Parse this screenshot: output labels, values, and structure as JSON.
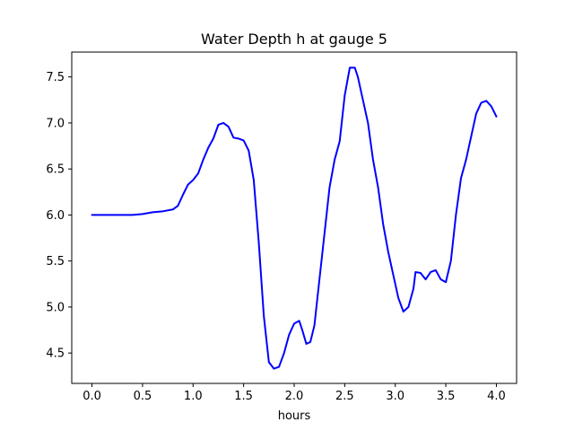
{
  "chart_data": {
    "type": "line",
    "title": "Water Depth h at gauge 5",
    "xlabel": "hours",
    "ylabel": "",
    "xlim": [
      -0.2,
      4.2
    ],
    "ylim": [
      4.17,
      7.77
    ],
    "xticks": [
      0.0,
      0.5,
      1.0,
      1.5,
      2.0,
      2.5,
      3.0,
      3.5,
      4.0
    ],
    "xtick_labels": [
      "0.0",
      "0.5",
      "1.0",
      "1.5",
      "2.0",
      "2.5",
      "3.0",
      "3.5",
      "4.0"
    ],
    "yticks": [
      4.5,
      5.0,
      5.5,
      6.0,
      6.5,
      7.0,
      7.5
    ],
    "ytick_labels": [
      "4.5",
      "5.0",
      "5.5",
      "6.0",
      "6.5",
      "7.0",
      "7.5"
    ],
    "grid": false,
    "series": [
      {
        "color": "#0000ff",
        "x": [
          0.0,
          0.2,
          0.4,
          0.5,
          0.6,
          0.7,
          0.8,
          0.85,
          0.9,
          0.95,
          1.0,
          1.05,
          1.1,
          1.15,
          1.2,
          1.25,
          1.3,
          1.35,
          1.4,
          1.45,
          1.5,
          1.55,
          1.6,
          1.65,
          1.7,
          1.75,
          1.8,
          1.85,
          1.9,
          1.95,
          2.0,
          2.05,
          2.08,
          2.12,
          2.16,
          2.2,
          2.25,
          2.3,
          2.35,
          2.4,
          2.45,
          2.5,
          2.55,
          2.6,
          2.63,
          2.68,
          2.73,
          2.78,
          2.83,
          2.88,
          2.93,
          2.98,
          3.03,
          3.08,
          3.13,
          3.18,
          3.2,
          3.25,
          3.3,
          3.35,
          3.4,
          3.45,
          3.5,
          3.55,
          3.6,
          3.65,
          3.7,
          3.75,
          3.8,
          3.85,
          3.9,
          3.95,
          4.0
        ],
        "y": [
          6.0,
          6.0,
          6.0,
          6.01,
          6.03,
          6.04,
          6.06,
          6.1,
          6.22,
          6.33,
          6.38,
          6.45,
          6.6,
          6.73,
          6.83,
          6.98,
          7.0,
          6.96,
          6.84,
          6.83,
          6.81,
          6.7,
          6.38,
          5.7,
          4.9,
          4.4,
          4.33,
          4.35,
          4.5,
          4.7,
          4.82,
          4.85,
          4.75,
          4.6,
          4.62,
          4.8,
          5.3,
          5.8,
          6.3,
          6.6,
          6.8,
          7.3,
          7.6,
          7.6,
          7.5,
          7.25,
          7.0,
          6.6,
          6.3,
          5.9,
          5.6,
          5.35,
          5.1,
          4.95,
          5.0,
          5.2,
          5.38,
          5.37,
          5.3,
          5.38,
          5.4,
          5.3,
          5.27,
          5.5,
          6.0,
          6.4,
          6.6,
          6.85,
          7.1,
          7.22,
          7.24,
          7.18,
          7.07
        ]
      }
    ]
  }
}
